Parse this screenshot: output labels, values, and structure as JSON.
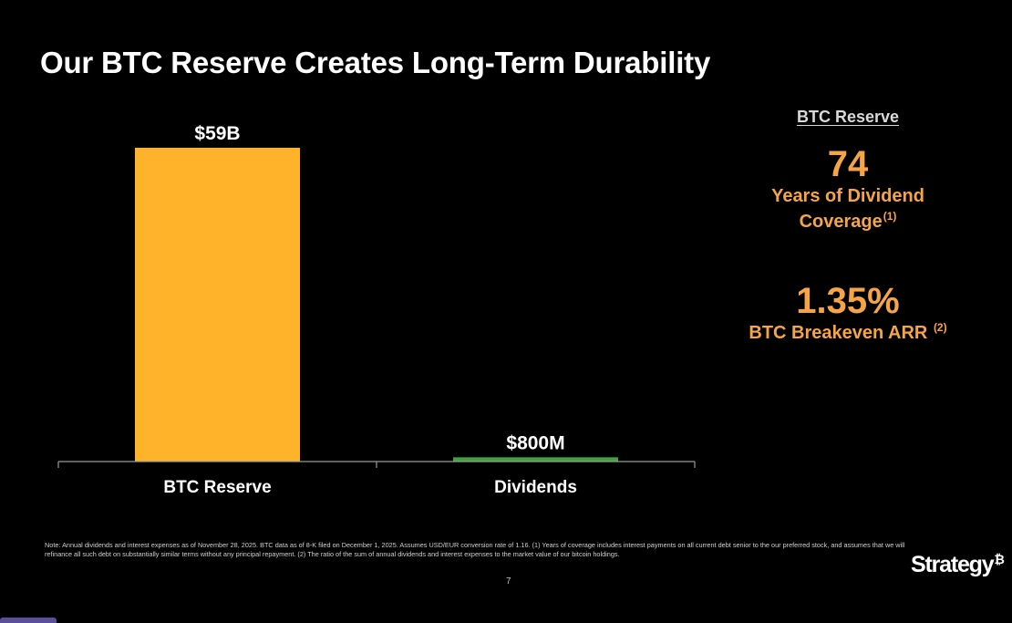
{
  "title": "Our BTC Reserve Creates Long-Term Durability",
  "chart_data": {
    "type": "bar",
    "title": "Our BTC Reserve Creates Long-Term Durability",
    "categories": [
      "BTC Reserve",
      "Dividends"
    ],
    "values": [
      59000,
      800
    ],
    "unit": "$M",
    "data_labels": [
      "$59B",
      "$800M"
    ],
    "colors": [
      "#ffb32b",
      "#3da63a"
    ],
    "xlabel": "",
    "ylabel": "",
    "ylim": [
      0,
      59000
    ],
    "grid": false,
    "legend": "none"
  },
  "side_panel": {
    "heading": "BTC Reserve",
    "metric1": {
      "value": "74",
      "label_line1": "Years of Dividend",
      "label_line2": "Coverage",
      "footnote": "(1)"
    },
    "metric2": {
      "value": "1.35%",
      "label": "BTC Breakeven ARR",
      "footnote": "(2)"
    },
    "accent_color": "#f7a446"
  },
  "note": "Note: Annual dividends and interest expenses as of November 28, 2025. BTC data as of 8-K filed on December 1, 2025. Assumes USD/EUR conversion rate of 1.16. (1) Years of coverage includes interest payments on all current debt senior to the our preferred stock, and assumes that we will refinance all such debt on substantially similar terms without any principal repayment. (2) The ratio of the sum of annual dividends and interest expenses to the market value of our bitcoin holdings.",
  "page_number": "7",
  "logo": {
    "text": "Strategy",
    "mark": "₿"
  }
}
